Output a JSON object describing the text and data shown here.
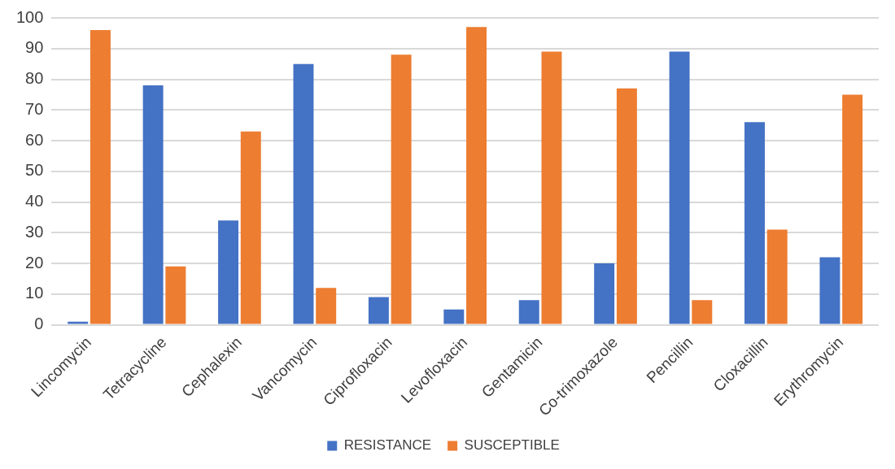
{
  "chart_data": {
    "type": "bar",
    "categories": [
      "Lincomycin",
      "Tetracycline",
      "Cephalexin",
      "Vancomycin",
      "Ciprofloxacin",
      "Levofloxacin",
      "Gentamicin",
      "Co-trimoxazole",
      "Pencillin",
      "Cloxacillin",
      "Erythromycin"
    ],
    "series": [
      {
        "name": "RESISTANCE",
        "color": "#4472c4",
        "values": [
          1,
          78,
          34,
          85,
          9,
          5,
          8,
          20,
          89,
          66,
          22
        ]
      },
      {
        "name": "SUSCEPTIBLE",
        "color": "#ed7d31",
        "values": [
          96,
          19,
          63,
          12,
          88,
          97,
          89,
          77,
          8,
          31,
          75
        ]
      }
    ],
    "ylim": [
      0,
      100
    ],
    "yticks": [
      0,
      10,
      20,
      30,
      40,
      50,
      60,
      70,
      80,
      90,
      100
    ],
    "grid": "y",
    "legend": "bottom"
  }
}
